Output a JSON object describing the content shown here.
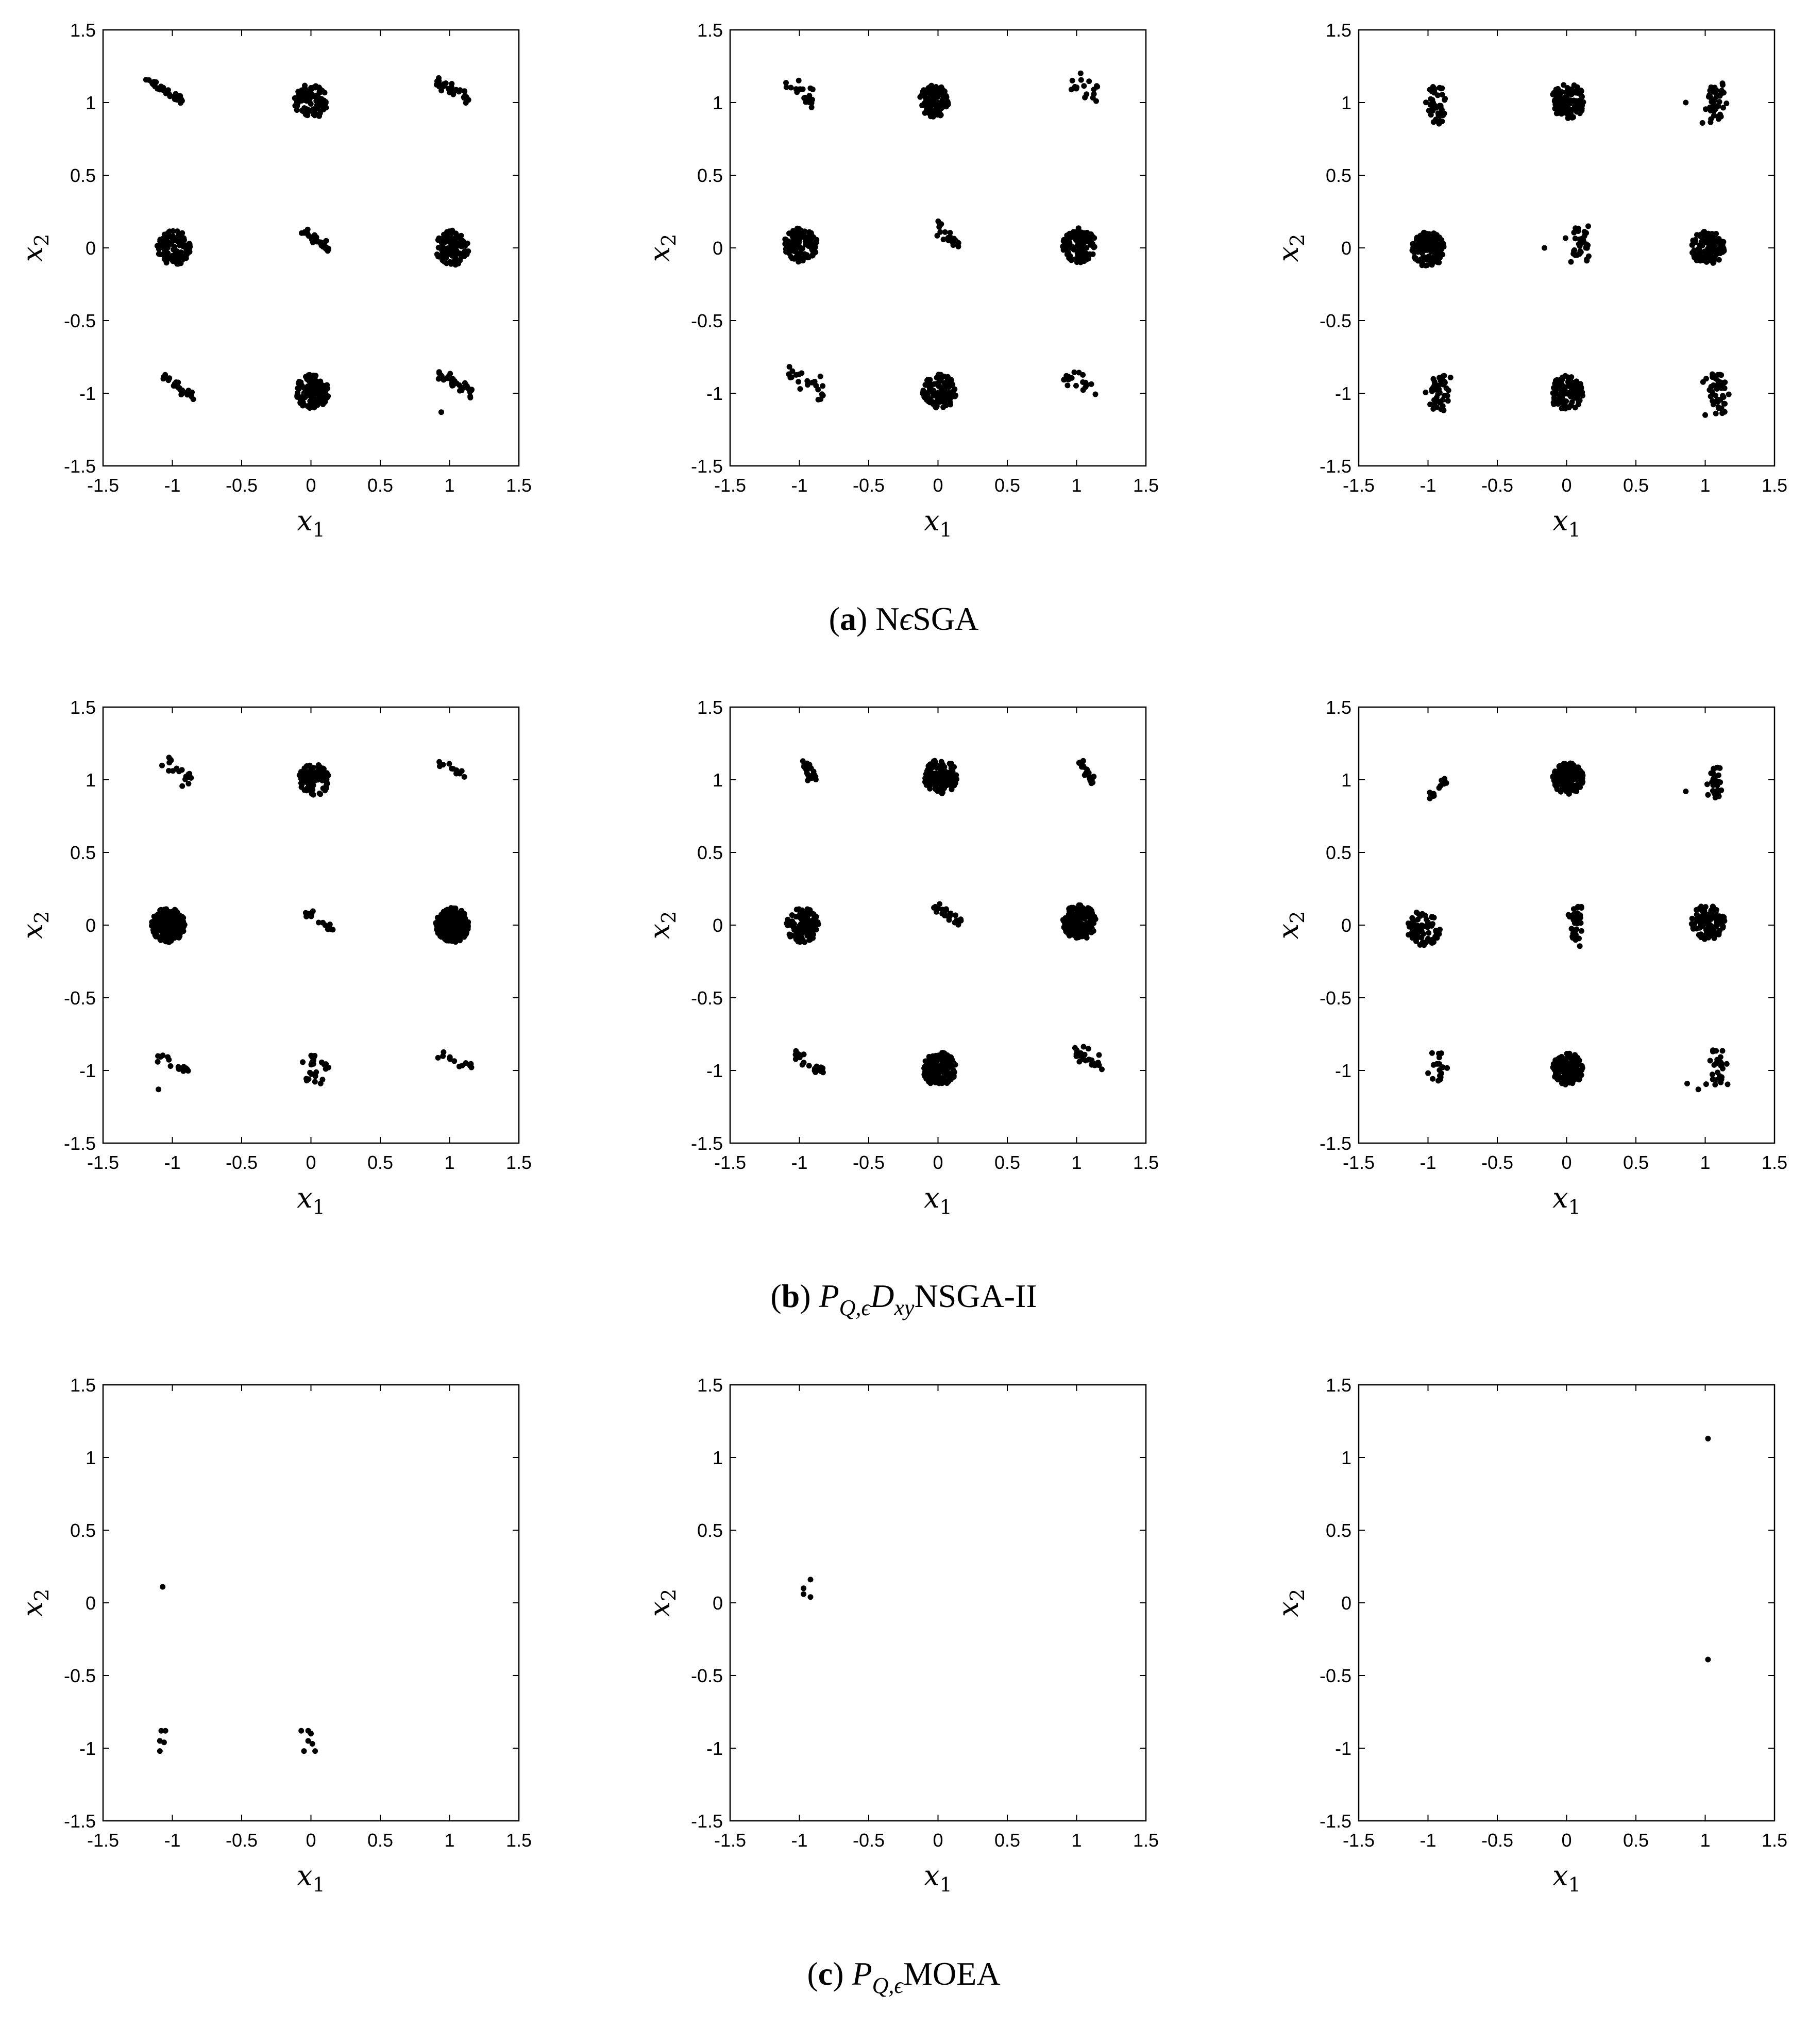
{
  "figure": {
    "captions": [
      {
        "tag": "a",
        "parts": [
          {
            "t": "(",
            "s": "n"
          },
          {
            "t": "a",
            "s": "b"
          },
          {
            "t": ") N",
            "s": "n"
          },
          {
            "t": "ϵ",
            "s": "i"
          },
          {
            "t": "SGA",
            "s": "n"
          }
        ]
      },
      {
        "tag": "b",
        "parts": [
          {
            "t": "(",
            "s": "n"
          },
          {
            "t": "b",
            "s": "b"
          },
          {
            "t": ") ",
            "s": "n"
          },
          {
            "t": "P",
            "s": "i"
          },
          {
            "t": "Q,ϵ",
            "s": "isub"
          },
          {
            "t": "D",
            "s": "i"
          },
          {
            "t": "xy",
            "s": "isub"
          },
          {
            "t": "NSGA-II",
            "s": "n"
          }
        ]
      },
      {
        "tag": "c",
        "parts": [
          {
            "t": "(",
            "s": "n"
          },
          {
            "t": "c",
            "s": "b"
          },
          {
            "t": ") ",
            "s": "n"
          },
          {
            "t": "P",
            "s": "i"
          },
          {
            "t": "Q,ϵ",
            "s": "isub"
          },
          {
            "t": "MOEA",
            "s": "n"
          }
        ]
      }
    ],
    "axes_common": {
      "xlabel": "x",
      "xlabel_sub": "1",
      "ylabel": "x",
      "ylabel_sub": "2",
      "xlim": [
        -1.5,
        1.5
      ],
      "ylim": [
        -1.5,
        1.5
      ],
      "xticks": [
        "-1.5",
        "-1",
        "-0.5",
        "0",
        "0.5",
        "1",
        "1.5"
      ],
      "yticks": [
        "-1.5",
        "-1",
        "-0.5",
        "0",
        "0.5",
        "1",
        "1.5"
      ],
      "grid": false,
      "box": true,
      "marker_color": "#000000"
    }
  },
  "chart_data": [
    {
      "type": "scatter",
      "row": "a",
      "col": 1,
      "clusters": [
        {
          "cx": -1.06,
          "cy": 1.09,
          "n": 35,
          "shape": "line",
          "len": 0.3,
          "slope": -0.55,
          "spread": 0.015
        },
        {
          "cx": 0.0,
          "cy": 1.01,
          "n": 110,
          "shape": "disc",
          "r": 0.12
        },
        {
          "cx": 1.03,
          "cy": 1.08,
          "n": 30,
          "shape": "line",
          "len": 0.28,
          "slope": -0.45,
          "spread": 0.02
        },
        {
          "cx": -0.99,
          "cy": 0.0,
          "n": 110,
          "shape": "disc",
          "r": 0.12
        },
        {
          "cx": 0.03,
          "cy": 0.06,
          "n": 30,
          "shape": "line",
          "len": 0.25,
          "slope": -0.7,
          "spread": 0.015
        },
        {
          "cx": 1.02,
          "cy": 0.0,
          "n": 110,
          "shape": "disc",
          "r": 0.12
        },
        {
          "cx": -0.96,
          "cy": -0.95,
          "n": 28,
          "shape": "line",
          "len": 0.28,
          "slope": -0.65,
          "spread": 0.015
        },
        {
          "cx": 0.01,
          "cy": -0.99,
          "n": 110,
          "shape": "disc",
          "r": 0.12
        },
        {
          "cx": 1.04,
          "cy": -0.93,
          "n": 35,
          "shape": "line",
          "len": 0.28,
          "slope": -0.55,
          "spread": 0.02
        }
      ],
      "extra_points": [
        [
          0.94,
          -1.13
        ]
      ]
    },
    {
      "type": "scatter",
      "row": "a",
      "col": 2,
      "clusters": [
        {
          "cx": -0.99,
          "cy": 1.07,
          "n": 22,
          "shape": "line",
          "len": 0.25,
          "slope": -0.6,
          "spread": 0.04
        },
        {
          "cx": -0.03,
          "cy": 1.01,
          "n": 110,
          "shape": "disc",
          "r": 0.11
        },
        {
          "cx": 1.06,
          "cy": 1.08,
          "n": 18,
          "shape": "line",
          "len": 0.22,
          "slope": -0.5,
          "spread": 0.05
        },
        {
          "cx": -0.99,
          "cy": 0.02,
          "n": 110,
          "shape": "disc",
          "r": 0.12
        },
        {
          "cx": 0.08,
          "cy": 0.07,
          "n": 18,
          "shape": "line",
          "len": 0.22,
          "slope": -0.8,
          "spread": 0.03
        },
        {
          "cx": 1.02,
          "cy": 0.02,
          "n": 110,
          "shape": "disc",
          "r": 0.12
        },
        {
          "cx": -0.95,
          "cy": -0.92,
          "n": 22,
          "shape": "line",
          "len": 0.28,
          "slope": -0.4,
          "spread": 0.04
        },
        {
          "cx": 0.01,
          "cy": -0.99,
          "n": 110,
          "shape": "disc",
          "r": 0.12
        },
        {
          "cx": 1.03,
          "cy": -0.93,
          "n": 18,
          "shape": "line",
          "len": 0.28,
          "slope": -0.4,
          "spread": 0.04
        }
      ],
      "extra_points": []
    },
    {
      "type": "scatter",
      "row": "a",
      "col": 3,
      "clusters": [
        {
          "cx": -0.93,
          "cy": 0.98,
          "n": 45,
          "shape": "vline",
          "len": 0.26,
          "spread": 0.04
        },
        {
          "cx": 0.01,
          "cy": 1.01,
          "n": 110,
          "shape": "disc",
          "r": 0.12
        },
        {
          "cx": 1.08,
          "cy": 1.0,
          "n": 45,
          "shape": "vline",
          "len": 0.28,
          "spread": 0.04
        },
        {
          "cx": -1.0,
          "cy": -0.01,
          "n": 110,
          "shape": "disc",
          "r": 0.12
        },
        {
          "cx": 0.09,
          "cy": 0.02,
          "n": 35,
          "shape": "vline",
          "len": 0.26,
          "spread": 0.04
        },
        {
          "cx": 1.02,
          "cy": 0.0,
          "n": 110,
          "shape": "disc",
          "r": 0.12
        },
        {
          "cx": -0.92,
          "cy": -1.0,
          "n": 45,
          "shape": "vline",
          "len": 0.26,
          "spread": 0.04
        },
        {
          "cx": 0.0,
          "cy": -1.0,
          "n": 110,
          "shape": "disc",
          "r": 0.12
        },
        {
          "cx": 1.08,
          "cy": -1.0,
          "n": 45,
          "shape": "vline",
          "len": 0.28,
          "spread": 0.04
        }
      ],
      "extra_points": [
        [
          0.86,
          1.0
        ],
        [
          0.98,
          0.86
        ],
        [
          -0.16,
          0.0
        ],
        [
          1.0,
          -1.15
        ]
      ]
    },
    {
      "type": "scatter",
      "row": "b",
      "col": 1,
      "clusters": [
        {
          "cx": -0.97,
          "cy": 1.06,
          "n": 18,
          "shape": "line",
          "len": 0.25,
          "slope": -0.6,
          "spread": 0.03
        },
        {
          "cx": 0.02,
          "cy": 1.0,
          "n": 90,
          "shape": "disc",
          "r": 0.11
        },
        {
          "cx": 1.04,
          "cy": 1.06,
          "n": 12,
          "shape": "line",
          "len": 0.25,
          "slope": -0.45,
          "spread": 0.02
        },
        {
          "cx": -1.03,
          "cy": 0.0,
          "n": 240,
          "shape": "disc",
          "r": 0.12
        },
        {
          "cx": 0.07,
          "cy": 0.04,
          "n": 14,
          "shape": "line",
          "len": 0.25,
          "slope": -0.5,
          "spread": 0.02
        },
        {
          "cx": 1.02,
          "cy": 0.0,
          "n": 240,
          "shape": "disc",
          "r": 0.12
        },
        {
          "cx": -1.0,
          "cy": -0.95,
          "n": 16,
          "shape": "line",
          "len": 0.26,
          "slope": -0.55,
          "spread": 0.02
        },
        {
          "cx": 0.03,
          "cy": -0.98,
          "n": 22,
          "shape": "disc",
          "r": 0.1
        },
        {
          "cx": 1.04,
          "cy": -0.93,
          "n": 12,
          "shape": "line",
          "len": 0.26,
          "slope": -0.3,
          "spread": 0.015
        }
      ],
      "extra_points": [
        [
          -1.1,
          -1.13
        ],
        [
          -0.03,
          -1.07
        ],
        [
          0.07,
          -1.09
        ]
      ]
    },
    {
      "type": "scatter",
      "row": "b",
      "col": 2,
      "clusters": [
        {
          "cx": -0.93,
          "cy": 1.06,
          "n": 22,
          "shape": "line",
          "len": 0.16,
          "slope": -1.3,
          "spread": 0.025
        },
        {
          "cx": 0.02,
          "cy": 1.02,
          "n": 140,
          "shape": "disc",
          "r": 0.12
        },
        {
          "cx": 1.07,
          "cy": 1.06,
          "n": 25,
          "shape": "line",
          "len": 0.18,
          "slope": -1.3,
          "spread": 0.025
        },
        {
          "cx": -0.98,
          "cy": 0.0,
          "n": 110,
          "shape": "disc",
          "r": 0.12
        },
        {
          "cx": 0.07,
          "cy": 0.07,
          "n": 22,
          "shape": "line",
          "len": 0.25,
          "slope": -0.7,
          "spread": 0.02
        },
        {
          "cx": 1.02,
          "cy": 0.02,
          "n": 140,
          "shape": "disc",
          "r": 0.12
        },
        {
          "cx": -0.93,
          "cy": -0.95,
          "n": 25,
          "shape": "line",
          "len": 0.24,
          "slope": -0.6,
          "spread": 0.025
        },
        {
          "cx": 0.01,
          "cy": -0.99,
          "n": 150,
          "shape": "disc",
          "r": 0.12
        },
        {
          "cx": 1.08,
          "cy": -0.93,
          "n": 30,
          "shape": "line",
          "len": 0.26,
          "slope": -0.6,
          "spread": 0.03
        }
      ],
      "extra_points": []
    },
    {
      "type": "scatter",
      "row": "b",
      "col": 3,
      "clusters": [
        {
          "cx": -0.93,
          "cy": 0.95,
          "n": 14,
          "shape": "line",
          "len": 0.18,
          "slope": 1.0,
          "spread": 0.03
        },
        {
          "cx": 0.01,
          "cy": 1.01,
          "n": 170,
          "shape": "disc",
          "r": 0.11
        },
        {
          "cx": 1.08,
          "cy": 1.0,
          "n": 28,
          "shape": "vline",
          "len": 0.26,
          "spread": 0.04
        },
        {
          "cx": -1.03,
          "cy": -0.02,
          "n": 70,
          "shape": "disc",
          "r": 0.12
        },
        {
          "cx": 0.06,
          "cy": -0.01,
          "n": 40,
          "shape": "vline",
          "len": 0.28,
          "spread": 0.03
        },
        {
          "cx": 1.02,
          "cy": 0.02,
          "n": 110,
          "shape": "disc",
          "r": 0.12
        },
        {
          "cx": -0.92,
          "cy": -0.97,
          "n": 18,
          "shape": "vline",
          "len": 0.22,
          "spread": 0.03
        },
        {
          "cx": 0.01,
          "cy": -0.99,
          "n": 170,
          "shape": "disc",
          "r": 0.11
        },
        {
          "cx": 1.08,
          "cy": -0.98,
          "n": 26,
          "shape": "vline",
          "len": 0.24,
          "spread": 0.04
        }
      ],
      "extra_points": [
        [
          0.86,
          0.92
        ],
        [
          0.87,
          -1.09
        ],
        [
          0.95,
          -1.13
        ]
      ]
    },
    {
      "type": "scatter",
      "row": "c",
      "col": 1,
      "clusters": [],
      "extra_points": [
        [
          -1.07,
          0.11
        ],
        [
          -1.08,
          -0.88
        ],
        [
          -1.05,
          -0.88
        ],
        [
          -1.09,
          -0.95
        ],
        [
          -1.06,
          -0.96
        ],
        [
          -1.09,
          -1.02
        ],
        [
          -0.07,
          -0.88
        ],
        [
          -0.02,
          -0.88
        ],
        [
          0.0,
          -0.9
        ],
        [
          -0.02,
          -0.95
        ],
        [
          0.01,
          -0.97
        ],
        [
          -0.05,
          -1.02
        ],
        [
          0.03,
          -1.02
        ]
      ]
    },
    {
      "type": "scatter",
      "row": "c",
      "col": 2,
      "clusters": [],
      "extra_points": [
        [
          -0.97,
          0.06
        ],
        [
          -0.92,
          0.16
        ],
        [
          -0.97,
          0.1
        ],
        [
          -0.92,
          0.04
        ]
      ]
    },
    {
      "type": "scatter",
      "row": "c",
      "col": 3,
      "clusters": [],
      "extra_points": [
        [
          1.02,
          1.13
        ],
        [
          1.02,
          -0.39
        ]
      ]
    }
  ]
}
